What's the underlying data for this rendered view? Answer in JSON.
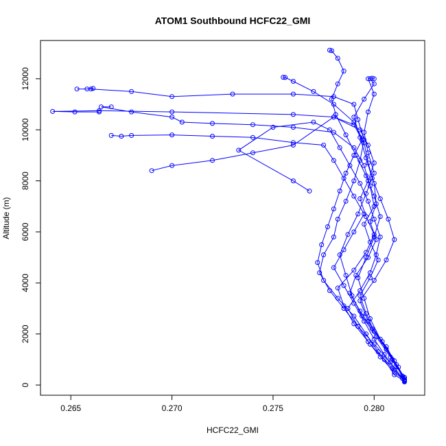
{
  "chart_data": {
    "type": "line",
    "title": "ATOM1 Southbound HCFC22_GMI",
    "xlabel": "HCFC22_GMI",
    "ylabel": "Altitude (m)",
    "xlim": [
      0.2635,
      0.2825
    ],
    "ylim": [
      -400,
      13500
    ],
    "xticks": [
      {
        "value": 0.265,
        "label": "0.265"
      },
      {
        "value": 0.27,
        "label": "0.270"
      },
      {
        "value": 0.275,
        "label": "0.275"
      },
      {
        "value": 0.28,
        "label": "0.280"
      }
    ],
    "yticks": [
      {
        "value": 0,
        "label": "0"
      },
      {
        "value": 2000,
        "label": "2000"
      },
      {
        "value": 4000,
        "label": "4000"
      },
      {
        "value": 6000,
        "label": "6000"
      },
      {
        "value": 8000,
        "label": "8000"
      },
      {
        "value": 10000,
        "label": "10000"
      },
      {
        "value": 12000,
        "label": "12000"
      }
    ],
    "color": "#0000ff",
    "marker": "open-circle",
    "grid": false,
    "series": [
      {
        "points": [
          [
            0.2815,
            150
          ],
          [
            0.281,
            600
          ],
          [
            0.2805,
            1200
          ],
          [
            0.28,
            1800
          ],
          [
            0.2795,
            2500
          ],
          [
            0.279,
            3200
          ],
          [
            0.2785,
            3900
          ],
          [
            0.278,
            4600
          ],
          [
            0.2785,
            5300
          ],
          [
            0.279,
            6000
          ],
          [
            0.2795,
            6700
          ],
          [
            0.279,
            7400
          ],
          [
            0.2785,
            8100
          ],
          [
            0.278,
            8800
          ],
          [
            0.2775,
            9400
          ],
          [
            0.276,
            9500
          ],
          [
            0.274,
            9700
          ],
          [
            0.272,
            9750
          ],
          [
            0.27,
            9800
          ],
          [
            0.268,
            9780
          ],
          [
            0.2675,
            9750
          ],
          [
            0.267,
            9780
          ]
        ]
      },
      {
        "points": [
          [
            0.2815,
            200
          ],
          [
            0.2812,
            700
          ],
          [
            0.2806,
            1400
          ],
          [
            0.28,
            2100
          ],
          [
            0.2796,
            2800
          ],
          [
            0.2793,
            3500
          ],
          [
            0.2798,
            4200
          ],
          [
            0.2802,
            4900
          ],
          [
            0.2798,
            5600
          ],
          [
            0.2795,
            6300
          ],
          [
            0.28,
            7000
          ],
          [
            0.2798,
            7800
          ],
          [
            0.2795,
            8600
          ],
          [
            0.279,
            9300
          ],
          [
            0.278,
            9900
          ],
          [
            0.276,
            10100
          ],
          [
            0.274,
            10200
          ],
          [
            0.272,
            10250
          ],
          [
            0.2705,
            10300
          ],
          [
            0.27,
            10500
          ],
          [
            0.268,
            10700
          ],
          [
            0.2665,
            10900
          ],
          [
            0.267,
            10900
          ]
        ]
      },
      {
        "points": [
          [
            0.2814,
            250
          ],
          [
            0.2808,
            900
          ],
          [
            0.28,
            1600
          ],
          [
            0.2792,
            2300
          ],
          [
            0.2785,
            3000
          ],
          [
            0.2778,
            3700
          ],
          [
            0.2773,
            4400
          ],
          [
            0.2775,
            5100
          ],
          [
            0.278,
            5800
          ],
          [
            0.2782,
            6500
          ],
          [
            0.2786,
            7200
          ],
          [
            0.279,
            8000
          ],
          [
            0.2793,
            8800
          ],
          [
            0.2795,
            9600
          ],
          [
            0.2792,
            10400
          ],
          [
            0.279,
            11000
          ],
          [
            0.278,
            11300
          ],
          [
            0.276,
            11400
          ],
          [
            0.273,
            11400
          ],
          [
            0.27,
            11300
          ],
          [
            0.268,
            11500
          ],
          [
            0.266,
            11600
          ],
          [
            0.2653,
            11600
          ],
          [
            0.2658,
            11600
          ],
          [
            0.2661,
            11620
          ]
        ]
      },
      {
        "points": [
          [
            0.2815,
            180
          ],
          [
            0.281,
            500
          ],
          [
            0.2803,
            1100
          ],
          [
            0.2797,
            1700
          ],
          [
            0.279,
            2400
          ],
          [
            0.2785,
            3100
          ],
          [
            0.2782,
            3800
          ],
          [
            0.279,
            4500
          ],
          [
            0.2796,
            5200
          ],
          [
            0.28,
            5900
          ],
          [
            0.2796,
            6600
          ],
          [
            0.2793,
            7300
          ],
          [
            0.2797,
            8000
          ],
          [
            0.28,
            8700
          ],
          [
            0.2797,
            9400
          ],
          [
            0.2793,
            10000
          ],
          [
            0.278,
            10500
          ],
          [
            0.276,
            10600
          ],
          [
            0.27,
            10700
          ],
          [
            0.2664,
            10750
          ],
          [
            0.2641,
            10720
          ],
          [
            0.2652,
            10700
          ],
          [
            0.2664,
            10700
          ]
        ]
      },
      {
        "points": [
          [
            0.2815,
            300
          ],
          [
            0.2809,
            1000
          ],
          [
            0.2803,
            1800
          ],
          [
            0.2798,
            2600
          ],
          [
            0.2795,
            3400
          ],
          [
            0.2792,
            4200
          ],
          [
            0.2796,
            5000
          ],
          [
            0.28,
            5800
          ],
          [
            0.2803,
            6600
          ],
          [
            0.28,
            7400
          ],
          [
            0.2796,
            8200
          ],
          [
            0.2791,
            9000
          ],
          [
            0.2786,
            9800
          ],
          [
            0.2781,
            10600
          ],
          [
            0.2779,
            11200
          ],
          [
            0.2782,
            11800
          ],
          [
            0.2785,
            12300
          ],
          [
            0.2782,
            12800
          ],
          [
            0.2779,
            13100
          ],
          [
            0.2778,
            13120
          ]
        ]
      },
      {
        "points": [
          [
            0.2815,
            120
          ],
          [
            0.2811,
            800
          ],
          [
            0.2806,
            1500
          ],
          [
            0.2799,
            2200
          ],
          [
            0.2793,
            2900
          ],
          [
            0.2788,
            3600
          ],
          [
            0.2791,
            4300
          ],
          [
            0.2797,
            5000
          ],
          [
            0.2801,
            5700
          ],
          [
            0.2798,
            6400
          ],
          [
            0.2801,
            7100
          ],
          [
            0.28,
            7900
          ],
          [
            0.2797,
            8700
          ],
          [
            0.2795,
            9500
          ],
          [
            0.279,
            10300
          ],
          [
            0.278,
            11000
          ],
          [
            0.277,
            11500
          ],
          [
            0.276,
            11900
          ],
          [
            0.2756,
            12050
          ],
          [
            0.2755,
            12060
          ]
        ]
      },
      {
        "points": [
          [
            0.2814,
            350
          ],
          [
            0.2808,
            1100
          ],
          [
            0.2801,
            1900
          ],
          [
            0.2794,
            2700
          ],
          [
            0.2789,
            3500
          ],
          [
            0.2786,
            4300
          ],
          [
            0.2783,
            5100
          ],
          [
            0.2787,
            5900
          ],
          [
            0.2792,
            6700
          ],
          [
            0.2796,
            7500
          ],
          [
            0.28,
            8300
          ],
          [
            0.2797,
            9100
          ],
          [
            0.2795,
            9900
          ],
          [
            0.2797,
            10700
          ],
          [
            0.28,
            11400
          ],
          [
            0.2797,
            12000
          ],
          [
            0.2799,
            12020
          ],
          [
            0.28,
            12000
          ]
        ]
      },
      {
        "points": [
          [
            0.2815,
            220
          ],
          [
            0.2809,
            650
          ],
          [
            0.2802,
            1300
          ],
          [
            0.2796,
            2000
          ],
          [
            0.279,
            2700
          ],
          [
            0.2782,
            3400
          ],
          [
            0.2775,
            4100
          ],
          [
            0.2772,
            4800
          ],
          [
            0.2774,
            5500
          ],
          [
            0.2777,
            6200
          ],
          [
            0.278,
            6900
          ],
          [
            0.2783,
            7600
          ],
          [
            0.2786,
            8300
          ],
          [
            0.279,
            9000
          ],
          [
            0.2794,
            9600
          ],
          [
            0.279,
            10200
          ],
          [
            0.278,
            10500
          ],
          [
            0.276,
            9400
          ],
          [
            0.274,
            9100
          ],
          [
            0.272,
            8800
          ],
          [
            0.27,
            8600
          ],
          [
            0.269,
            8400
          ]
        ]
      },
      {
        "points": [
          [
            0.2815,
            160
          ],
          [
            0.281,
            400
          ],
          [
            0.2805,
            1000
          ],
          [
            0.2798,
            1600
          ],
          [
            0.2792,
            2300
          ],
          [
            0.2787,
            3000
          ],
          [
            0.2793,
            3700
          ],
          [
            0.2798,
            4400
          ],
          [
            0.2801,
            5100
          ],
          [
            0.2803,
            5800
          ],
          [
            0.28,
            6500
          ],
          [
            0.2797,
            7200
          ],
          [
            0.2793,
            7900
          ],
          [
            0.2788,
            8600
          ],
          [
            0.2783,
            9300
          ],
          [
            0.2778,
            10000
          ],
          [
            0.277,
            10300
          ],
          [
            0.275,
            10100
          ],
          [
            0.2733,
            9200
          ],
          [
            0.276,
            8000
          ],
          [
            0.2768,
            7600
          ]
        ]
      },
      {
        "points": [
          [
            0.2815,
            280
          ],
          [
            0.281,
            950
          ],
          [
            0.2804,
            1700
          ],
          [
            0.2797,
            2500
          ],
          [
            0.2793,
            3300
          ],
          [
            0.28,
            4100
          ],
          [
            0.2806,
            4900
          ],
          [
            0.281,
            5700
          ],
          [
            0.2807,
            6500
          ],
          [
            0.2803,
            7300
          ],
          [
            0.2799,
            8100
          ],
          [
            0.2796,
            8900
          ],
          [
            0.2793,
            9700
          ],
          [
            0.279,
            10500
          ],
          [
            0.2795,
            11200
          ],
          [
            0.28,
            11800
          ],
          [
            0.2798,
            12000
          ]
        ]
      }
    ]
  }
}
